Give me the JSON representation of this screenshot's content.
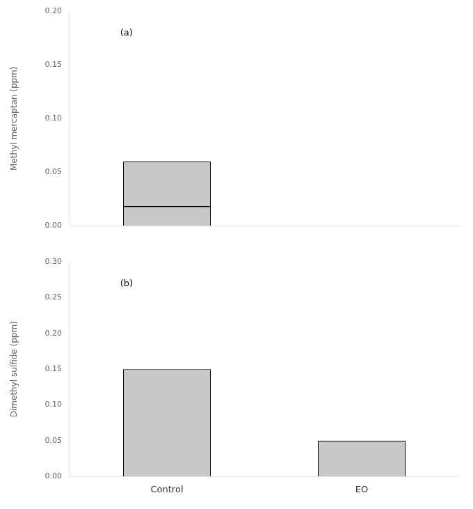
{
  "chart_data": [
    {
      "type": "bar",
      "ylabel": "Methyl mercaptan (ppm)",
      "categories": [
        null,
        null
      ],
      "values": [
        0.06,
        null
      ],
      "median": [
        0.018,
        null
      ],
      "color": "#c8c8c8",
      "ylim": [
        0,
        0.2
      ],
      "yticks": [
        {
          "value": 0.0,
          "label": "0.00"
        },
        0.05,
        {
          "value": 0.1,
          "label": "0.10"
        },
        0.15,
        {
          "value": 0.2,
          "label": "0.20"
        }
      ],
      "annotations": [
        "(a)"
      ],
      "grid": false
    },
    {
      "type": "bar",
      "ylabel": "Dimethyl sulfide (ppm)",
      "categories": [
        "Control",
        "EO"
      ],
      "values": [
        0.15,
        0.05
      ],
      "color": "#c8c8c8",
      "ylim": [
        0,
        0.3
      ],
      "yticks": [
        {
          "value": 0.0,
          "label": "0.00"
        },
        0.05,
        {
          "value": 0.1,
          "label": "0.10"
        },
        0.15,
        {
          "value": 0.2,
          "label": "0.20"
        },
        0.25,
        {
          "value": 0.3,
          "label": "0.30"
        }
      ],
      "annotations": [
        "(b)"
      ],
      "grid": false
    }
  ]
}
